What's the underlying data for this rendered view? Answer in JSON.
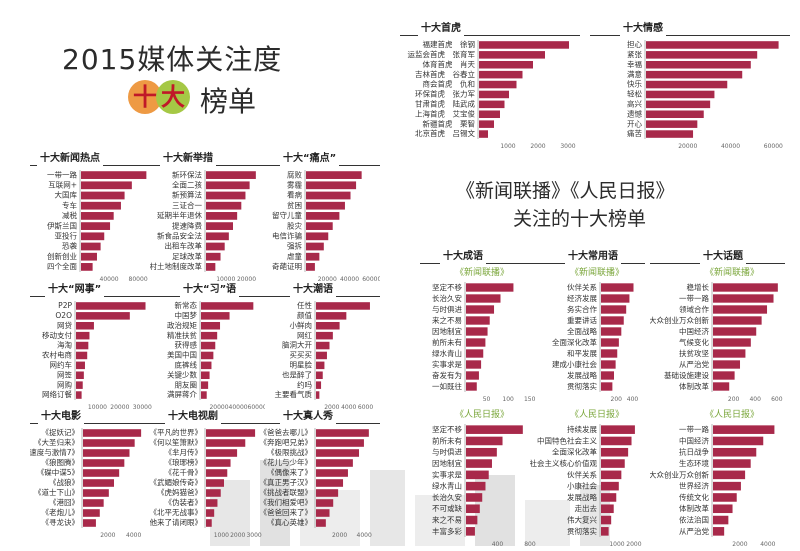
{
  "headline": {
    "title": "2015媒体关注度",
    "ball1": "十",
    "ball2": "大",
    "sub": "榜单"
  },
  "middle": {
    "line1": "《新闻联播》《人民日报》",
    "line2": "关注的十大榜单"
  },
  "colors": {
    "bar": "#a8294a",
    "bar_light": "#b4566e",
    "header": "#333333"
  },
  "panels": [
    {
      "title": "十大首虎",
      "labels": [
        "福建首虎　徐钢",
        "运监会首虎　张育军",
        "体育首虎　肖天",
        "吉林首虎　谷春立",
        "商会首虎　仇和",
        "环保首虎　张力军",
        "甘肃首虎　陆武成",
        "上海首虎　艾宝俊",
        "新疆首虎　栗智",
        "北京首虎　吕锡文"
      ],
      "ticks": [
        "1000",
        "2000",
        "3000"
      ],
      "max": 3200,
      "values": [
        3000,
        2200,
        1800,
        1450,
        1250,
        1000,
        850,
        700,
        500,
        300
      ],
      "ylabel": ""
    },
    {
      "title": "十大情感",
      "labels": [
        "担心",
        "紧张",
        "幸福",
        "满意",
        "快乐",
        "轻松",
        "高兴",
        "遗憾",
        "开心",
        "痛苦"
      ],
      "ticks": [
        "20000",
        "40000",
        "60000"
      ],
      "max": 65000,
      "values": [
        62000,
        52000,
        49000,
        45000,
        38000,
        32000,
        30000,
        27000,
        24000,
        22000
      ],
      "ylabel": ""
    },
    {
      "title": "十大新闻热点",
      "labels": [
        "一带一路",
        "互联网+",
        "大国库",
        "专车",
        "减税",
        "伊斯兰国",
        "亚投行",
        "恐袭",
        "创新创业",
        "四个全面"
      ],
      "ticks": [
        "40000",
        "80000"
      ],
      "max": 95000,
      "values": [
        90000,
        70000,
        60000,
        55000,
        45000,
        40000,
        32000,
        27000,
        22000,
        16000
      ],
      "ylabel": ""
    },
    {
      "title": "十大新举措",
      "labels": [
        "新环保法",
        "全面二孩",
        "新预算法",
        "三证合一",
        "延期半年退休",
        "提速降费",
        "新食品安全法",
        "出租车改革",
        "足球改革",
        "农村土地制度改革"
      ],
      "ticks": [
        "10000",
        "20000"
      ],
      "max": 26000,
      "values": [
        24000,
        21000,
        19000,
        17000,
        15000,
        13000,
        11000,
        9000,
        7000,
        4500
      ],
      "ylabel": ""
    },
    {
      "title": "十大“痛点”",
      "labels": [
        "腐败",
        "雾霾",
        "看病",
        "贫困",
        "留守儿童",
        "股灾",
        "电信诈骗",
        "强拆",
        "虐童",
        "奇葩证明"
      ],
      "ticks": [
        "20000",
        "40000",
        "60000"
      ],
      "max": 62000,
      "values": [
        50000,
        45000,
        40000,
        35000,
        30000,
        24000,
        20000,
        16000,
        12000,
        8000
      ],
      "ylabel": ""
    },
    {
      "title": "十大“网事”",
      "labels": [
        "P2P",
        "O2O",
        "网贷",
        "移动支付",
        "海淘",
        "农村电商",
        "网约车",
        "网签",
        "网购",
        "网络订餐"
      ],
      "ticks": [
        "10000",
        "20000",
        "30000"
      ],
      "max": 33000,
      "values": [
        31000,
        24000,
        8000,
        6000,
        5500,
        5000,
        4000,
        3500,
        3000,
        2500
      ],
      "ylabel": ""
    },
    {
      "title": "十大“习”语",
      "labels": [
        "新常态",
        "中国梦",
        "政治规矩",
        "精准扶贫",
        "获得感",
        "美国中国",
        "底裤线",
        "关键少数",
        "朋友圈",
        "满屏蒋介"
      ],
      "ticks": [
        "20000",
        "40000",
        "60000"
      ],
      "max": 62000,
      "values": [
        55000,
        30000,
        20000,
        17000,
        15000,
        13000,
        11000,
        9000,
        7500,
        6000
      ],
      "ylabel": ""
    },
    {
      "title": "十大潮语",
      "labels": [
        "任性",
        "颜值",
        "小鲜肉",
        "网红",
        "脑洞大开",
        "买买买",
        "明星脸",
        "也是醉了",
        "约吗",
        "主要看气质"
      ],
      "ticks": [
        "2000",
        "4000",
        "6000"
      ],
      "max": 7000,
      "values": [
        6400,
        3600,
        2800,
        2000,
        1600,
        1300,
        1000,
        800,
        600,
        400
      ],
      "ylabel": ""
    },
    {
      "title": "十大电影",
      "labels": [
        "《捉妖记》",
        "《大圣归来》",
        "《速度与激情7》",
        "《狼图腾》",
        "《碟中谍5》",
        "《战狼》",
        "《道士下山》",
        "《港囧》",
        "《老炮儿》",
        "《寻龙诀》"
      ],
      "ticks": [
        "2000",
        "4000"
      ],
      "max": 4800,
      "values": [
        4500,
        4000,
        3600,
        3200,
        2800,
        2400,
        2000,
        1600,
        1300,
        1000
      ],
      "ylabel": ""
    },
    {
      "title": "十大电视剧",
      "labels": [
        "《平凡的世界》",
        "《何以笙箫默》",
        "《芈月传》",
        "《琅琊榜》",
        "《花千骨》",
        "《武媚娘传奇》",
        "《虎妈猫爸》",
        "《伪装者》",
        "《北平无战事》",
        "《他来了请闭眼》"
      ],
      "ticks": [
        "1000",
        "2000",
        "3000"
      ],
      "max": 3300,
      "values": [
        3000,
        2400,
        1900,
        1500,
        1300,
        1100,
        900,
        700,
        500,
        350
      ],
      "ylabel": ""
    },
    {
      "title": "十大真人秀",
      "labels": [
        "《爸爸去哪儿》",
        "《奔跑吧兄弟》",
        "《极限挑战》",
        "《花儿与少年》",
        "《偶像来了》",
        "《真正男子汉》",
        "《挑战者联盟》",
        "《我们相爱吧》",
        "《爸爸回来了》",
        "《真心英雄》"
      ],
      "ticks": [
        "2000",
        "4000"
      ],
      "max": 4800,
      "values": [
        4300,
        3900,
        3500,
        3000,
        2600,
        2200,
        1800,
        1400,
        1100,
        800
      ],
      "ylabel": ""
    },
    {
      "title": "十大成语",
      "sub": "《新闻联播》",
      "labels": [
        "坚定不移",
        "长治久安",
        "与时俱进",
        "来之不易",
        "因地制宜",
        "前所未有",
        "绿水青山",
        "实事求是",
        "奋发有为",
        "一如既往"
      ],
      "ticks": [
        "50",
        "100",
        "150"
      ],
      "max": 160,
      "values": [
        110,
        80,
        65,
        55,
        50,
        45,
        40,
        35,
        30,
        25
      ],
      "ylabel": ""
    },
    {
      "title": "十大常用语",
      "sub": "《新闻联播》",
      "labels": [
        "伙伴关系",
        "经济发展",
        "务实合作",
        "重要讲话",
        "全面战略",
        "全面深化改革",
        "和平发展",
        "建成小康社会",
        "发展战略",
        "贯彻落实"
      ],
      "ticks": [
        "200",
        "400"
      ],
      "max": 480,
      "values": [
        400,
        350,
        310,
        280,
        250,
        220,
        200,
        180,
        160,
        140
      ],
      "ylabel": ""
    },
    {
      "title": "十大话题",
      "sub": "《新闻联播》",
      "labels": [
        "稳增长",
        "一带一路",
        "领域合作",
        "大众创业万众创新",
        "中国经济",
        "气候变化",
        "扶贫攻坚",
        "从严治党",
        "基础设施建设",
        "体制改革"
      ],
      "ticks": [
        "200",
        "400",
        "600"
      ],
      "max": 620,
      "values": [
        600,
        560,
        500,
        450,
        400,
        350,
        300,
        250,
        200,
        150
      ],
      "ylabel": ""
    },
    {
      "title": "",
      "sub": "《人民日报》",
      "labels": [
        "坚定不移",
        "前所未有",
        "与时俱进",
        "因地制宜",
        "实事求是",
        "绿水青山",
        "长治久安",
        "不可或缺",
        "来之不易",
        "丰富多彩"
      ],
      "ticks": [
        "400",
        "800"
      ],
      "max": 850,
      "values": [
        700,
        450,
        380,
        320,
        280,
        240,
        200,
        170,
        140,
        110
      ],
      "ylabel": ""
    },
    {
      "title": "",
      "sub": "《人民日报》",
      "labels": [
        "持续发展",
        "中国特色社会主义",
        "全面深化改革",
        "社会主义核心价值观",
        "伙伴关系",
        "小康社会",
        "发展战略",
        "走出去",
        "伟大复兴",
        "贯彻落实"
      ],
      "ticks": [
        "1000",
        "2000"
      ],
      "max": 2300,
      "values": [
        2000,
        1800,
        1600,
        1400,
        1200,
        1050,
        900,
        750,
        600,
        450
      ],
      "ylabel": ""
    },
    {
      "title": "",
      "sub": "《人民日报》",
      "labels": [
        "一带一路",
        "中国经济",
        "抗日战争",
        "生态环境",
        "大众创业万众创新",
        "世界经济",
        "传统文化",
        "体制改革",
        "依法治国",
        "从严治党"
      ],
      "ticks": [
        "2000",
        "4000"
      ],
      "max": 4800,
      "values": [
        4400,
        3600,
        3100,
        2700,
        2300,
        2000,
        1700,
        1400,
        1100,
        800
      ],
      "ylabel": ""
    }
  ]
}
